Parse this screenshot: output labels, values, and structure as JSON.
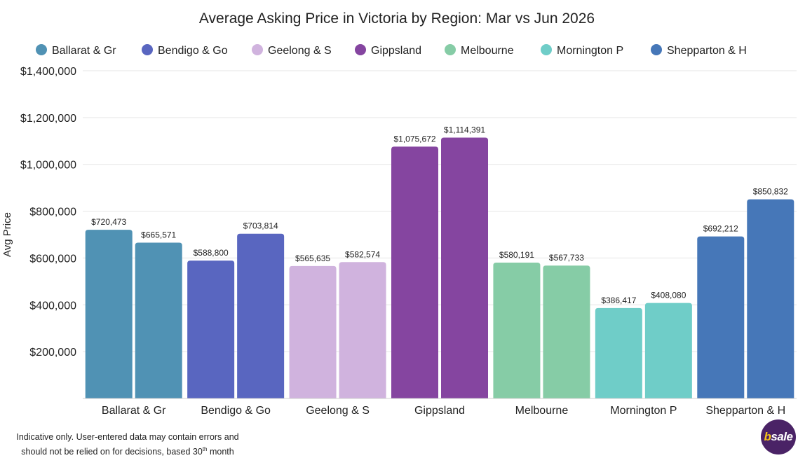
{
  "chart_data": {
    "type": "bar",
    "title": "Average Asking Price in Victoria by Region: Mar vs Jun 2026",
    "ylabel": "Avg Price",
    "xlabel": "",
    "ylim": [
      0,
      1400000
    ],
    "yticks": [
      200000,
      400000,
      600000,
      800000,
      1000000,
      1200000,
      1400000
    ],
    "ytick_labels": [
      "$200,000",
      "$400,000",
      "$600,000",
      "$800,000",
      "$1,000,000",
      "$1,200,000",
      "$1,400,000"
    ],
    "grid": true,
    "legend_position": "top",
    "categories": [
      "Ballarat & Gr",
      "Bendigo & Go",
      "Geelong & S",
      "Gippsland",
      "Melbourne",
      "Mornington P",
      "Shepparton & H"
    ],
    "colors": [
      "#5092b4",
      "#5966c0",
      "#d0b3de",
      "#8545a0",
      "#86cca6",
      "#6fcdc8",
      "#4677b8"
    ],
    "values": [
      [
        720473,
        665571
      ],
      [
        588800,
        703814
      ],
      [
        565635,
        582574
      ],
      [
        1075672,
        1114391
      ],
      [
        580191,
        567733
      ],
      [
        386417,
        408080
      ],
      [
        692212,
        850832
      ]
    ],
    "value_labels": [
      [
        "$720,473",
        "$665,571"
      ],
      [
        "$588,800",
        "$703,814"
      ],
      [
        "$565,635",
        "$582,574"
      ],
      [
        "$1,075,672",
        "$1,114,391"
      ],
      [
        "$580,191",
        "$567,733"
      ],
      [
        "$386,417",
        "$408,080"
      ],
      [
        "$692,212",
        "$850,832"
      ]
    ]
  },
  "footnote": {
    "line1": "Indicative only. User-entered data may contain errors and",
    "line2_pre": "should not be relied on for decisions, based 30",
    "line2_sup": "th",
    "line2_post": " month"
  },
  "logo": {
    "b": "b",
    "text": "sale"
  }
}
